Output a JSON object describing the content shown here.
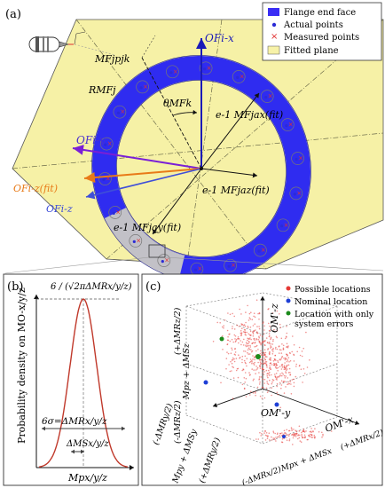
{
  "panel_a": {
    "label": "(a)",
    "legend": [
      {
        "label": "Flange end face",
        "swatch": "#3a2df5"
      },
      {
        "label": "Actual points",
        "swatch": "#2b2bd6"
      },
      {
        "label": "Measured points",
        "swatch": "#e03030"
      },
      {
        "label": "Fitted plane",
        "swatch": "#f7f2a8"
      }
    ],
    "labels": {
      "p_jk": "MFjpjk",
      "R_MFj": "RMFj",
      "theta": "θMFk",
      "O_x": "OFi-x",
      "O_y": "OFi-y",
      "O_z_fit": "OFi-z(fit)",
      "O_z": "OFi-z",
      "a_x": "e-1 MFjax(fit)",
      "a_z": "e-1 MFjaz(fit)",
      "a_y": "e-1 MFjay(fit)"
    },
    "colors": {
      "ring": "#2f2cf0",
      "plane": "#f6f1a6",
      "x_axis": "#1a1ab8",
      "y_axis": "#7a1fd6",
      "z_fit_axis": "#e87a18",
      "z_axis": "#3f4fd8"
    }
  },
  "panel_b": {
    "label": "(b)",
    "peak_label": "6 / (√2πΔMRx/y/z)",
    "ylabel": "Probability density on MO-x/y/z",
    "sigma_label": "6σ=ΔMRx/y/z",
    "ms_label": "ΔMSx/y/z",
    "xlabel": "Mpx/y/z",
    "curve_color": "#c0392b"
  },
  "panel_c": {
    "label": "(c)",
    "legend": [
      {
        "label": "Possible locations",
        "color": "#e53935"
      },
      {
        "label": "Nominal location",
        "color": "#1e3fd6"
      },
      {
        "label": "Location with only",
        "color": "#1b8a1b"
      },
      {
        "label": "system errors",
        "color": ""
      }
    ],
    "axis_z": "OM'-z",
    "axis_x": "OM'-x",
    "axis_y": "OM'-y",
    "z_tick_top": "(+ΔMRz/2)",
    "z_tick_mid": "Mpz + ΔMSz",
    "z_tick_bot": "(-ΔMRz/2)",
    "x_tick_left": "(-ΔMRy/2)",
    "x_tick_mid": "Mpy + ΔMSy",
    "x_tick_right": "(+ΔMRy/2)",
    "bottom_left": "(-ΔMRx/2)",
    "bottom_mid": "Mpx + ΔMSx",
    "bottom_right": "(+ΔMRx/2)"
  }
}
